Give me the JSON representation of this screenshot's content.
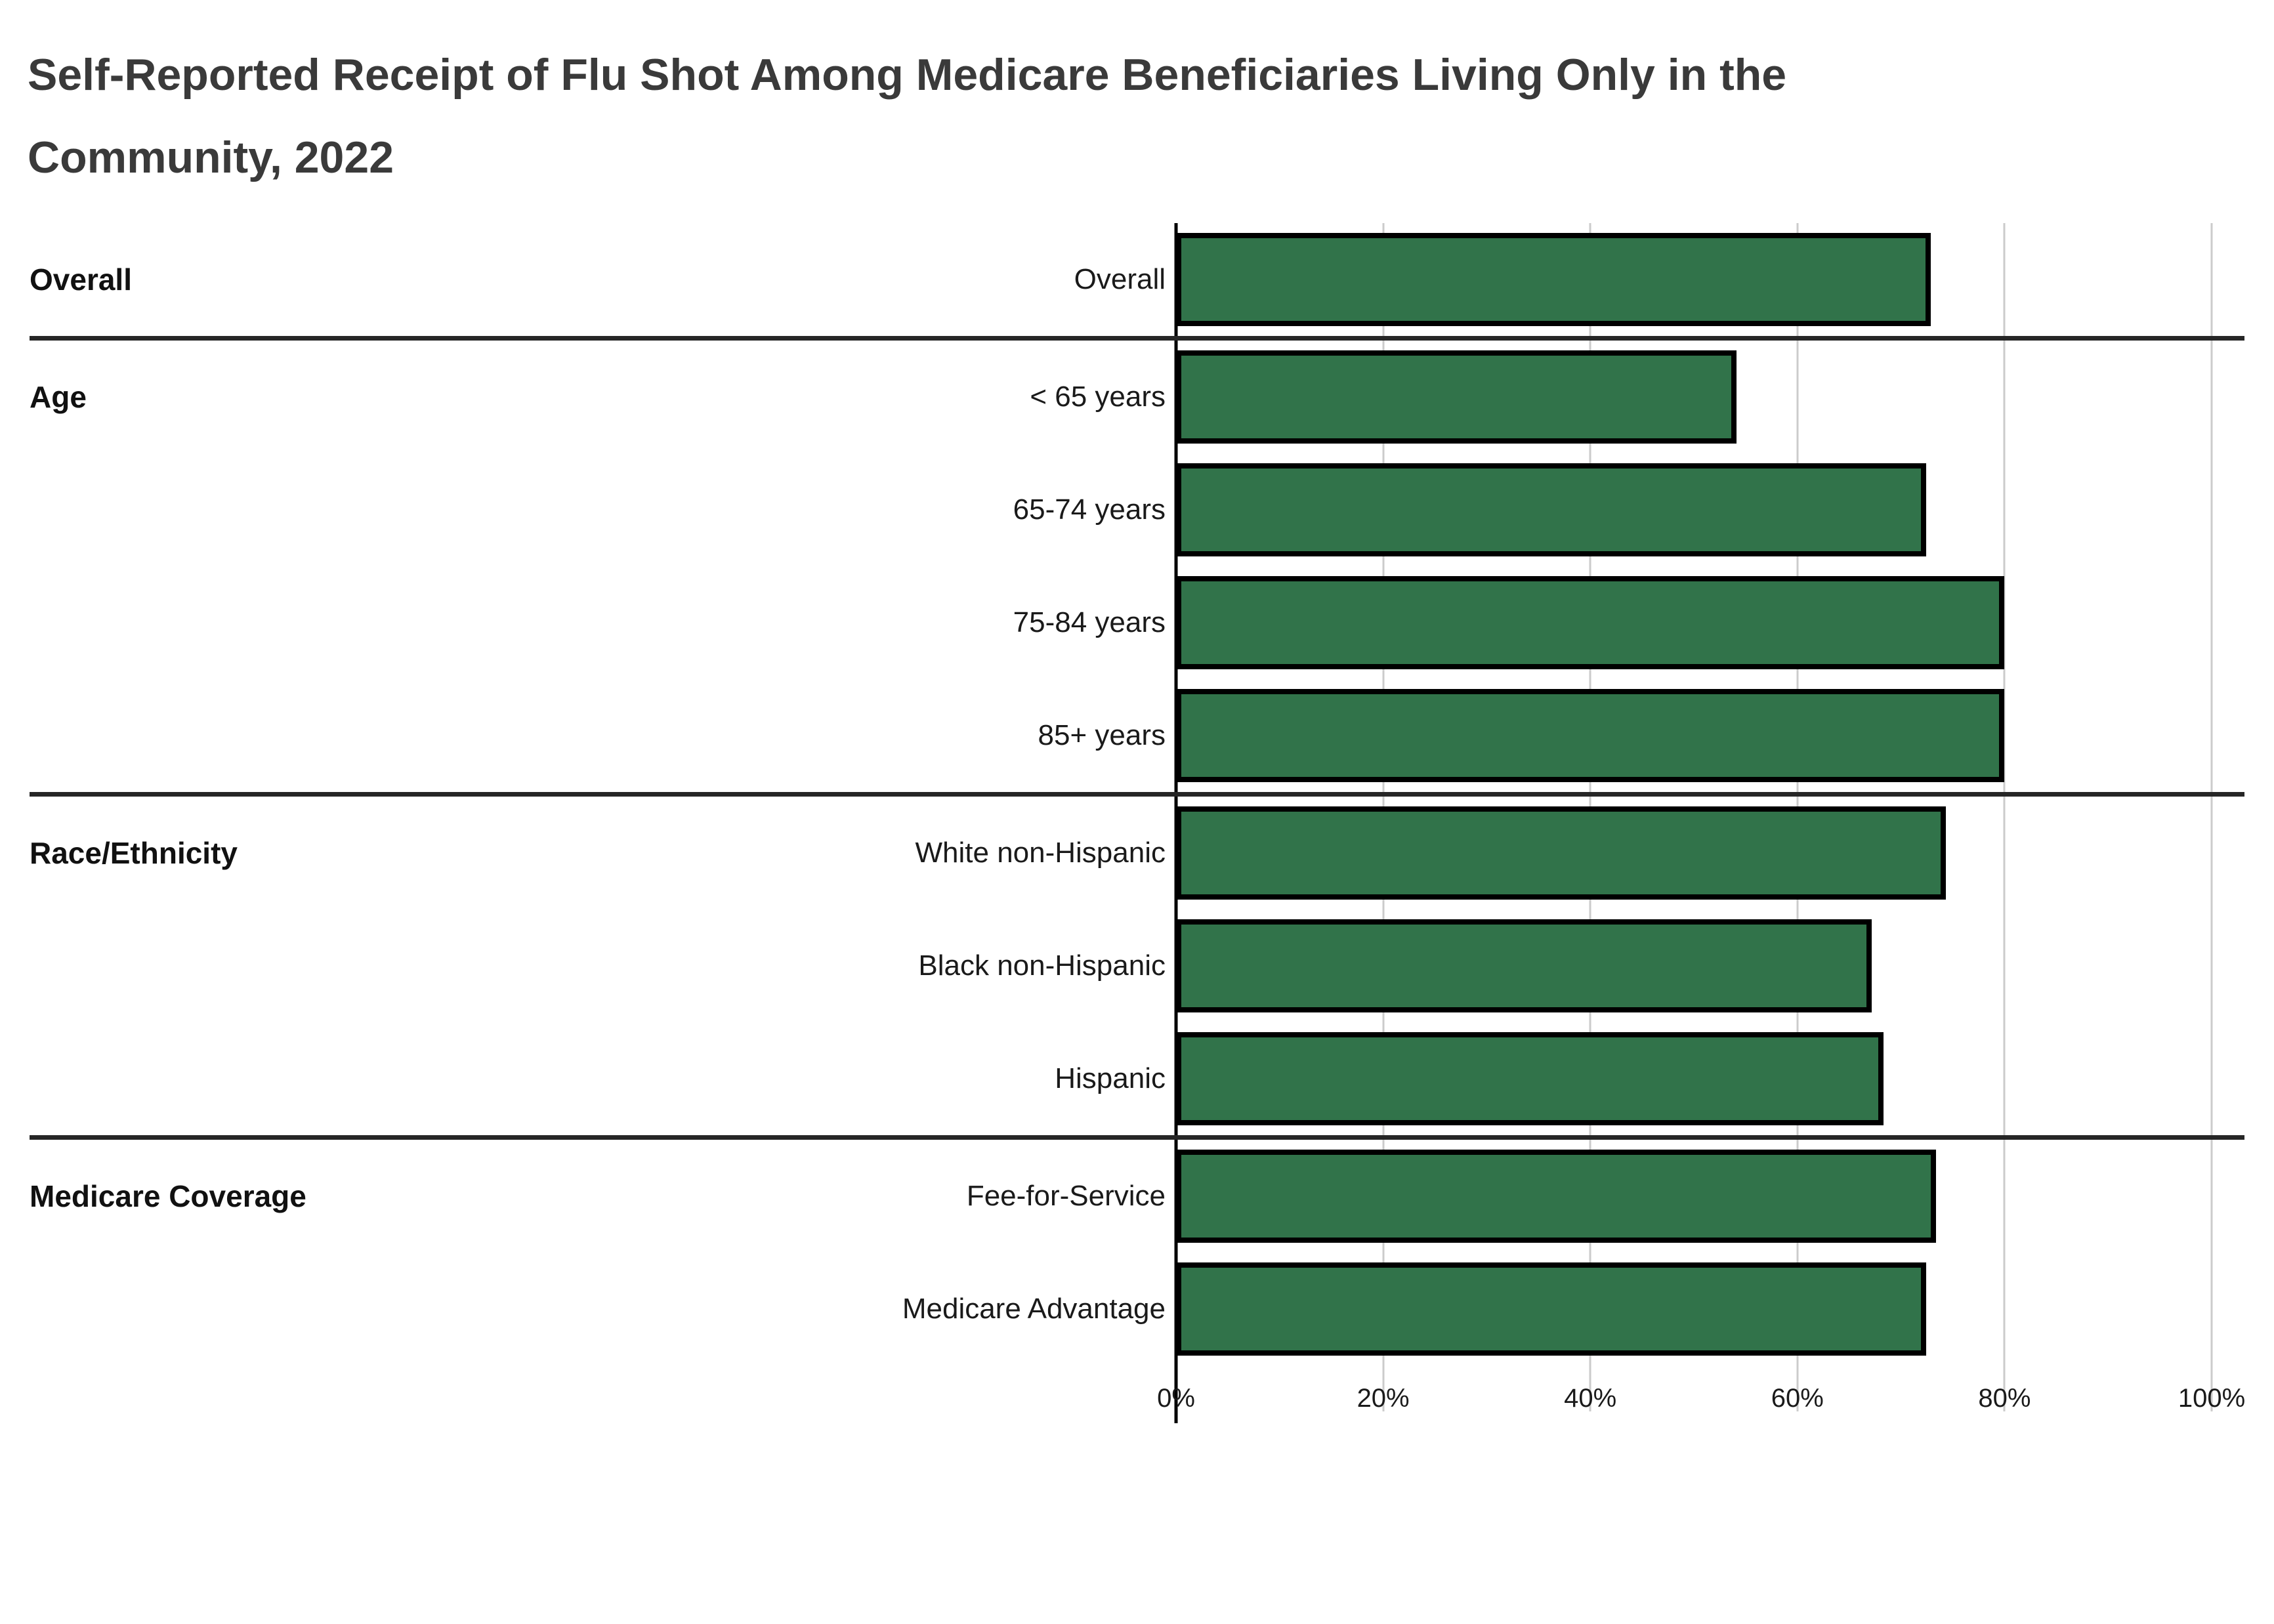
{
  "title_lines": [
    "Self-Reported Receipt of Flu Shot Among Medicare Beneficiaries Living Only in the",
    "Community, 2022"
  ],
  "colors": {
    "bar_fill": "#31734A",
    "bar_stroke": "#000000",
    "gridline": "#cbcbcb",
    "separator": "#262626",
    "title_text": "#3a3a3a"
  },
  "chart_data": {
    "type": "bar",
    "orientation": "horizontal",
    "title": "Self-Reported Receipt of Flu Shot Among Medicare Beneficiaries Living Only in the Community, 2022",
    "xlabel": "",
    "ylabel": "",
    "xlim": [
      0,
      100
    ],
    "x_ticks": [
      0,
      20,
      40,
      60,
      80,
      100
    ],
    "x_tick_labels": [
      "0%",
      "20%",
      "40%",
      "60%",
      "80%",
      "100%"
    ],
    "grid": true,
    "legend": false,
    "unit": "percent",
    "groups": [
      {
        "label": "Overall",
        "items": [
          {
            "category": "Overall",
            "value": 72.9
          }
        ]
      },
      {
        "label": "Age",
        "items": [
          {
            "category": "< 65 years",
            "value": 54.1
          },
          {
            "category": "65-74 years",
            "value": 72.4
          },
          {
            "category": "75-84 years",
            "value": 80.0
          },
          {
            "category": "85+ years",
            "value": 80.0
          }
        ]
      },
      {
        "label": "Race/Ethnicity",
        "items": [
          {
            "category": "White non-Hispanic",
            "value": 74.3
          },
          {
            "category": "Black non-Hispanic",
            "value": 67.2
          },
          {
            "category": "Hispanic",
            "value": 68.3
          }
        ]
      },
      {
        "label": "Medicare Coverage",
        "items": [
          {
            "category": "Fee-for-Service",
            "value": 73.4
          },
          {
            "category": "Medicare Advantage",
            "value": 72.4
          }
        ]
      }
    ]
  }
}
